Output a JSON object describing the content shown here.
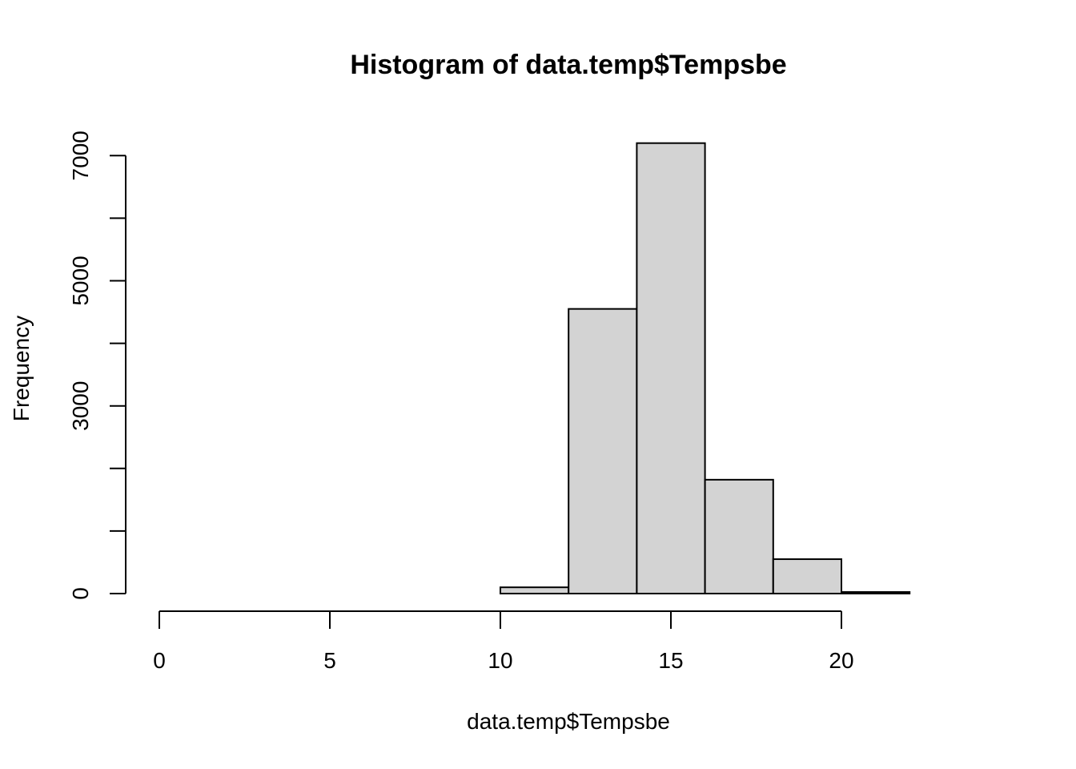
{
  "chart_data": {
    "type": "bar",
    "title": "Histogram of data.temp$Tempsbe",
    "xlabel": "data.temp$Tempsbe",
    "ylabel": "Frequency",
    "bins": [
      {
        "start": 0,
        "end": 2,
        "count": 0
      },
      {
        "start": 2,
        "end": 4,
        "count": 0
      },
      {
        "start": 4,
        "end": 6,
        "count": 0
      },
      {
        "start": 6,
        "end": 8,
        "count": 0
      },
      {
        "start": 8,
        "end": 10,
        "count": 0
      },
      {
        "start": 10,
        "end": 12,
        "count": 100
      },
      {
        "start": 12,
        "end": 14,
        "count": 4550
      },
      {
        "start": 14,
        "end": 16,
        "count": 7200
      },
      {
        "start": 16,
        "end": 18,
        "count": 1820
      },
      {
        "start": 18,
        "end": 20,
        "count": 550
      },
      {
        "start": 20,
        "end": 22,
        "count": 25
      },
      {
        "start": 22,
        "end": 24,
        "count": 0
      }
    ],
    "xlim": [
      0,
      24
    ],
    "ylim": [
      0,
      7200
    ],
    "x_ticks": [
      0,
      5,
      10,
      15,
      20
    ],
    "y_ticks": [
      0,
      1000,
      2000,
      3000,
      4000,
      5000,
      6000,
      7000
    ],
    "y_tick_labels": [
      "0",
      "",
      "",
      "3000",
      "",
      "5000",
      "",
      "7000"
    ],
    "grid": false,
    "legend": "none",
    "colors": {
      "bar_fill": "#d3d3d3",
      "bar_border": "#000000"
    }
  }
}
